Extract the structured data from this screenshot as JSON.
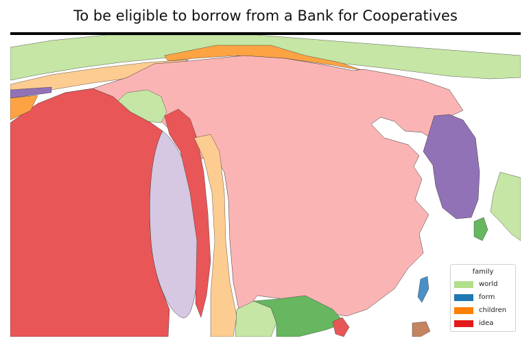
{
  "title": "To be eligible to borrow from a Bank for Cooperatives",
  "legend": {
    "title": "family",
    "items": [
      {
        "label": "world",
        "color": "#b2df8a"
      },
      {
        "label": "form",
        "color": "#1f78b4"
      },
      {
        "label": "children",
        "color": "#ff7f00"
      },
      {
        "label": "idea",
        "color": "#e31a1c"
      }
    ]
  },
  "regions": [
    {
      "name": "pink-region",
      "color": "#fbb4b4"
    },
    {
      "name": "red-region",
      "color": "#e85657"
    },
    {
      "name": "lavender-region",
      "color": "#d6c8e2"
    },
    {
      "name": "peach-region",
      "color": "#fdcc91"
    },
    {
      "name": "light-green-region",
      "color": "#c5e6a4"
    },
    {
      "name": "orange-region",
      "color": "#fda344"
    },
    {
      "name": "purple-region",
      "color": "#9272b6"
    },
    {
      "name": "green-region",
      "color": "#66b760"
    },
    {
      "name": "blue-region",
      "color": "#4a8fc6"
    },
    {
      "name": "brown-region",
      "color": "#c48460"
    }
  ]
}
